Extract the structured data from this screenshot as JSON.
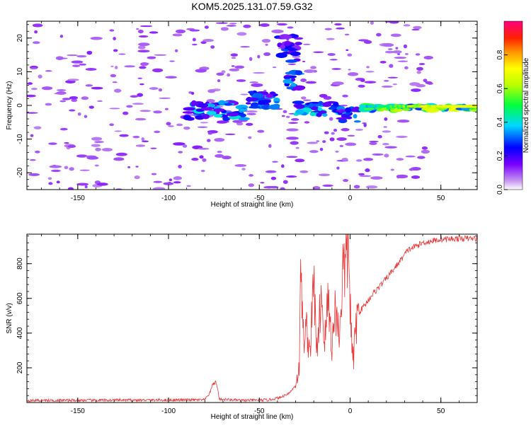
{
  "title": "KOM5.2025.131.07.59.G32",
  "chart_data": [
    {
      "type": "heatmap",
      "xlabel": "Height of straight line (km)",
      "ylabel": "Frequency (Hz)",
      "xlim": [
        -178,
        70
      ],
      "ylim": [
        -25,
        25
      ],
      "xticks": [
        -150,
        -100,
        -50,
        0,
        50
      ],
      "yticks": [
        -20,
        -10,
        0,
        10,
        20
      ],
      "colorbar": {
        "label": "Normalized spectral amplitude",
        "range": [
          0,
          1
        ],
        "ticks": [
          0.0,
          0.2,
          0.4,
          0.6,
          0.8
        ],
        "tick_labels": [
          "0.0",
          "0.2",
          "0.4",
          "0.6",
          "0.8"
        ]
      },
      "features": [
        {
          "x": [
            -90,
            -58
          ],
          "y": [
            -4,
            1
          ],
          "level": 0.35
        },
        {
          "x": [
            -57,
            -40
          ],
          "y": [
            -1,
            4
          ],
          "level": 0.3
        },
        {
          "x": [
            -40,
            -28
          ],
          "y": [
            13,
            21
          ],
          "level": 0.25
        },
        {
          "x": [
            -35,
            -28
          ],
          "y": [
            5,
            10
          ],
          "level": 0.3
        },
        {
          "x": [
            -30,
            -5
          ],
          "y": [
            -3,
            1
          ],
          "level": 0.35
        },
        {
          "x": [
            -5,
            5
          ],
          "y": [
            -5,
            -1
          ],
          "level": 0.3
        },
        {
          "x": [
            5,
            70
          ],
          "y": [
            -1.5,
            0
          ],
          "level": 0.6
        }
      ]
    },
    {
      "type": "line",
      "xlabel": "Height of straight line (km)",
      "ylabel": "SNR (v/v)",
      "xlim": [
        -178,
        70
      ],
      "ylim": [
        0,
        970
      ],
      "xticks": [
        -150,
        -100,
        -50,
        0,
        50
      ],
      "yticks": [
        200,
        400,
        600,
        800
      ],
      "color": "#e8383a",
      "profile": [
        [
          -178,
          12
        ],
        [
          -80,
          15
        ],
        [
          -77,
          60
        ],
        [
          -76,
          100
        ],
        [
          -74,
          120
        ],
        [
          -73,
          80
        ],
        [
          -72,
          20
        ],
        [
          -60,
          12
        ],
        [
          -45,
          15
        ],
        [
          -38,
          30
        ],
        [
          -33,
          60
        ],
        [
          -30,
          100
        ],
        [
          -28,
          200
        ],
        [
          -27,
          830
        ],
        [
          -26,
          380
        ],
        [
          -24,
          420
        ],
        [
          -22,
          300
        ],
        [
          -20,
          700
        ],
        [
          -18,
          250
        ],
        [
          -16,
          650
        ],
        [
          -14,
          350
        ],
        [
          -12,
          600
        ],
        [
          -10,
          320
        ],
        [
          -8,
          560
        ],
        [
          -6,
          380
        ],
        [
          -4,
          760
        ],
        [
          -2,
          800
        ],
        [
          -1,
          940
        ],
        [
          0,
          600
        ],
        [
          1,
          300
        ],
        [
          2,
          240
        ],
        [
          3,
          450
        ],
        [
          5,
          520
        ],
        [
          8,
          560
        ],
        [
          12,
          620
        ],
        [
          18,
          690
        ],
        [
          25,
          780
        ],
        [
          32,
          880
        ],
        [
          40,
          920
        ],
        [
          50,
          940
        ],
        [
          60,
          945
        ],
        [
          70,
          945
        ]
      ]
    }
  ]
}
